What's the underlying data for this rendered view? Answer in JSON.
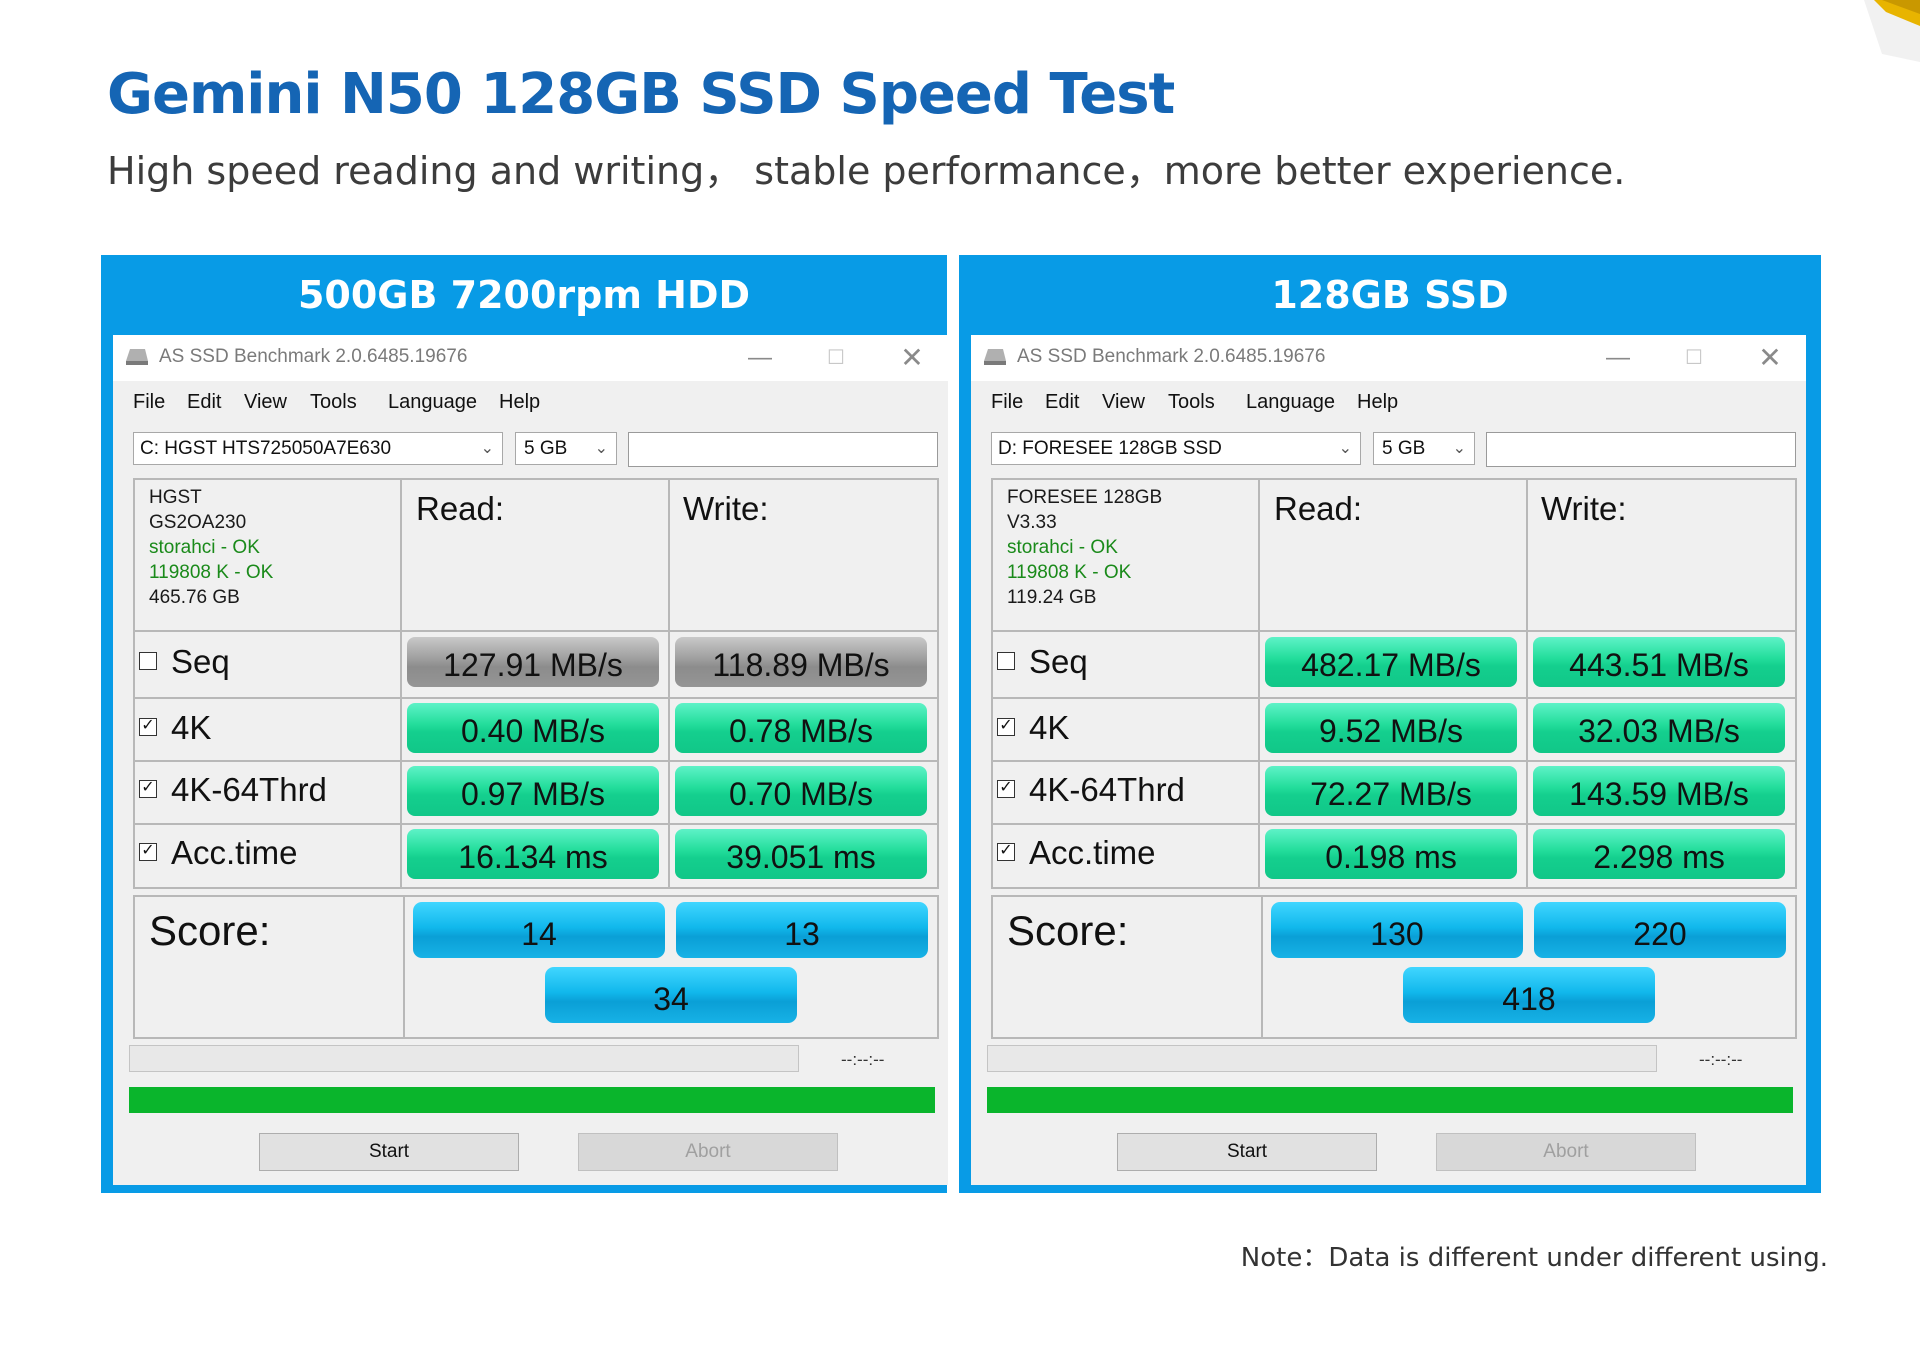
{
  "page": {
    "title": "Gemini N50 128GB SSD Speed Test",
    "subtitle": "High speed reading and writing， stable performance，more better experience.",
    "note": "Note：Data is different under different using."
  },
  "panels": [
    {
      "heading": "500GB 7200rpm  HDD",
      "app_title": "AS SSD Benchmark 2.0.6485.19676",
      "menu": [
        "File",
        "Edit",
        "View",
        "Tools",
        "Language",
        "Help"
      ],
      "drive": "C: HGST HTS725050A7E630",
      "test_size": "5 GB",
      "info": [
        "HGST",
        "GS2OA230",
        "storahci - OK",
        "119808 K - OK",
        "465.76 GB"
      ],
      "read_header": "Read:",
      "write_header": "Write:",
      "rows": [
        {
          "label": "Seq",
          "checked": false,
          "read": "127.91 MB/s",
          "write": "118.89 MB/s"
        },
        {
          "label": "4K",
          "checked": true,
          "read": "0.40 MB/s",
          "write": "0.78 MB/s"
        },
        {
          "label": "4K-64Thrd",
          "checked": true,
          "read": "0.97 MB/s",
          "write": "0.70 MB/s"
        },
        {
          "label": "Acc.time",
          "checked": true,
          "read": "16.134 ms",
          "write": "39.051 ms"
        }
      ],
      "score_label": "Score:",
      "score_read": "14",
      "score_write": "13",
      "score_total": "34",
      "time_readout": "--:--:--",
      "progress": 1.0,
      "start_label": "Start",
      "abort_label": "Abort"
    },
    {
      "heading": "128GB SSD",
      "app_title": "AS SSD Benchmark 2.0.6485.19676",
      "menu": [
        "File",
        "Edit",
        "View",
        "Tools",
        "Language",
        "Help"
      ],
      "drive": "D: FORESEE 128GB SSD",
      "test_size": "5 GB",
      "info": [
        "FORESEE 128GB",
        "V3.33",
        "storahci - OK",
        "119808 K - OK",
        "119.24 GB"
      ],
      "read_header": "Read:",
      "write_header": "Write:",
      "rows": [
        {
          "label": "Seq",
          "checked": false,
          "read": "482.17 MB/s",
          "write": "443.51 MB/s"
        },
        {
          "label": "4K",
          "checked": true,
          "read": "9.52 MB/s",
          "write": "32.03 MB/s"
        },
        {
          "label": "4K-64Thrd",
          "checked": true,
          "read": "72.27 MB/s",
          "write": "143.59 MB/s"
        },
        {
          "label": "Acc.time",
          "checked": true,
          "read": "0.198 ms",
          "write": "2.298 ms"
        }
      ],
      "score_label": "Score:",
      "score_read": "130",
      "score_write": "220",
      "score_total": "418",
      "time_readout": "--:--:--",
      "progress": 1.0,
      "start_label": "Start",
      "abort_label": "Abort"
    }
  ]
}
